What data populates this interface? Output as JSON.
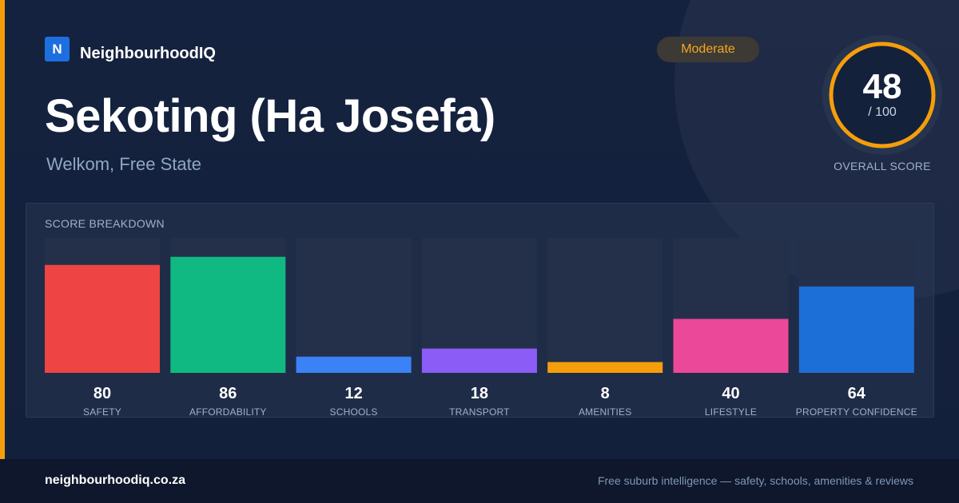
{
  "brand": {
    "logo_letter": "N",
    "name": "NeighbourhoodIQ"
  },
  "header": {
    "title": "Sekoting (Ha Josefa)",
    "subtitle": "Welkom, Free State",
    "badge": "Moderate"
  },
  "overall": {
    "score": "48",
    "max": "/ 100",
    "fraction": 0.48,
    "label": "OVERALL SCORE",
    "ring_color": "#f59e0b"
  },
  "panel": {
    "title": "SCORE BREAKDOWN"
  },
  "chart_data": {
    "type": "bar",
    "categories": [
      "SAFETY",
      "AFFORDABILITY",
      "SCHOOLS",
      "TRANSPORT",
      "AMENITIES",
      "LIFESTYLE",
      "PROPERTY CONFIDENCE"
    ],
    "values": [
      80,
      86,
      12,
      18,
      8,
      40,
      64
    ],
    "colors": [
      "#ef4444",
      "#10b981",
      "#3b82f6",
      "#8b5cf6",
      "#f59e0b",
      "#ec4899",
      "#1d6fd8"
    ],
    "ylim": [
      0,
      100
    ],
    "title": "SCORE BREAKDOWN"
  },
  "footer": {
    "domain": "neighbourhoodiq.co.za",
    "tagline": "Free suburb intelligence — safety, schools, amenities & reviews"
  }
}
